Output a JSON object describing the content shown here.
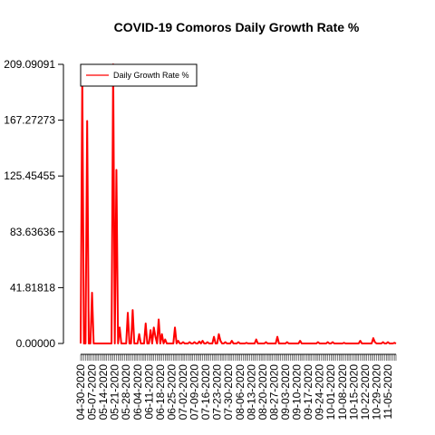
{
  "chart_data": {
    "type": "line",
    "title": "COVID-19 Comoros Daily Growth Rate %",
    "xlabel": "",
    "ylabel": "",
    "ylim": [
      0,
      209.09091
    ],
    "yticks": [
      "0.00000",
      "41.81818",
      "83.63636",
      "125.45455",
      "167.27273",
      "209.09091"
    ],
    "start_date": "2020-04-30",
    "end_date": "2020-11-10",
    "xtick_labels": [
      "04-30-2020",
      "05-07-2020",
      "05-14-2020",
      "05-21-2020",
      "05-28-2020",
      "06-04-2020",
      "06-11-2020",
      "06-18-2020",
      "06-25-2020",
      "07-02-2020",
      "07-09-2020",
      "07-16-2020",
      "07-23-2020",
      "07-30-2020",
      "08-06-2020",
      "08-13-2020",
      "08-20-2020",
      "08-27-2020",
      "09-03-2020",
      "09-10-2020",
      "09-17-2020",
      "09-24-2020",
      "10-01-2020",
      "10-08-2020",
      "10-15-2020",
      "10-22-2020",
      "10-29-2020",
      "11-05-2020"
    ],
    "legend": {
      "position": "top-left",
      "entries": [
        {
          "label": "Daily Growth Rate %",
          "color": "#ff0000"
        }
      ]
    },
    "grid": false,
    "series": [
      {
        "name": "Daily Growth Rate %",
        "color": "#ff0000",
        "points": [
          [
            "2020-04-30",
            0
          ],
          [
            "2020-05-01",
            200
          ],
          [
            "2020-05-02",
            0
          ],
          [
            "2020-05-03",
            0
          ],
          [
            "2020-05-04",
            166.7
          ],
          [
            "2020-05-05",
            0
          ],
          [
            "2020-05-06",
            0
          ],
          [
            "2020-05-07",
            38
          ],
          [
            "2020-05-08",
            0
          ],
          [
            "2020-05-09",
            0
          ],
          [
            "2020-05-10",
            0
          ],
          [
            "2020-05-11",
            0
          ],
          [
            "2020-05-12",
            0
          ],
          [
            "2020-05-13",
            0
          ],
          [
            "2020-05-14",
            0
          ],
          [
            "2020-05-15",
            0
          ],
          [
            "2020-05-16",
            0
          ],
          [
            "2020-05-17",
            0
          ],
          [
            "2020-05-18",
            0
          ],
          [
            "2020-05-19",
            0
          ],
          [
            "2020-05-20",
            209.09
          ],
          [
            "2020-05-21",
            0
          ],
          [
            "2020-05-22",
            130
          ],
          [
            "2020-05-23",
            0
          ],
          [
            "2020-05-24",
            12
          ],
          [
            "2020-05-25",
            0
          ],
          [
            "2020-05-26",
            0
          ],
          [
            "2020-05-27",
            0
          ],
          [
            "2020-05-28",
            0
          ],
          [
            "2020-05-29",
            23
          ],
          [
            "2020-05-30",
            0
          ],
          [
            "2020-05-31",
            0
          ],
          [
            "2020-06-01",
            25
          ],
          [
            "2020-06-02",
            0
          ],
          [
            "2020-06-03",
            0
          ],
          [
            "2020-06-04",
            0
          ],
          [
            "2020-06-05",
            7
          ],
          [
            "2020-06-06",
            0
          ],
          [
            "2020-06-07",
            0
          ],
          [
            "2020-06-08",
            0
          ],
          [
            "2020-06-09",
            15
          ],
          [
            "2020-06-10",
            0
          ],
          [
            "2020-06-11",
            0
          ],
          [
            "2020-06-12",
            10
          ],
          [
            "2020-06-13",
            0
          ],
          [
            "2020-06-14",
            12
          ],
          [
            "2020-06-15",
            5
          ],
          [
            "2020-06-16",
            0
          ],
          [
            "2020-06-17",
            18
          ],
          [
            "2020-06-18",
            0
          ],
          [
            "2020-06-19",
            7
          ],
          [
            "2020-06-20",
            0
          ],
          [
            "2020-06-21",
            3
          ],
          [
            "2020-06-22",
            0
          ],
          [
            "2020-06-23",
            0
          ],
          [
            "2020-06-24",
            0
          ],
          [
            "2020-06-25",
            0
          ],
          [
            "2020-06-26",
            0
          ],
          [
            "2020-06-27",
            12
          ],
          [
            "2020-06-28",
            0
          ],
          [
            "2020-06-29",
            2
          ],
          [
            "2020-06-30",
            0
          ],
          [
            "2020-07-01",
            0
          ],
          [
            "2020-07-02",
            1
          ],
          [
            "2020-07-03",
            0
          ],
          [
            "2020-07-04",
            0
          ],
          [
            "2020-07-05",
            0
          ],
          [
            "2020-07-06",
            1
          ],
          [
            "2020-07-07",
            0
          ],
          [
            "2020-07-08",
            0
          ],
          [
            "2020-07-09",
            1
          ],
          [
            "2020-07-10",
            0
          ],
          [
            "2020-07-11",
            0
          ],
          [
            "2020-07-12",
            1.5
          ],
          [
            "2020-07-13",
            0
          ],
          [
            "2020-07-14",
            2
          ],
          [
            "2020-07-15",
            0
          ],
          [
            "2020-07-16",
            0
          ],
          [
            "2020-07-17",
            1
          ],
          [
            "2020-07-18",
            0
          ],
          [
            "2020-07-19",
            0
          ],
          [
            "2020-07-20",
            0
          ],
          [
            "2020-07-21",
            5
          ],
          [
            "2020-07-22",
            0
          ],
          [
            "2020-07-23",
            0
          ],
          [
            "2020-07-24",
            7
          ],
          [
            "2020-07-25",
            2
          ],
          [
            "2020-07-26",
            0
          ],
          [
            "2020-07-27",
            0
          ],
          [
            "2020-07-28",
            1
          ],
          [
            "2020-07-29",
            0
          ],
          [
            "2020-07-30",
            0
          ],
          [
            "2020-07-31",
            0
          ],
          [
            "2020-08-01",
            2
          ],
          [
            "2020-08-02",
            0
          ],
          [
            "2020-08-03",
            0
          ],
          [
            "2020-08-04",
            0
          ],
          [
            "2020-08-05",
            1
          ],
          [
            "2020-08-06",
            0
          ],
          [
            "2020-08-07",
            0
          ],
          [
            "2020-08-08",
            0
          ],
          [
            "2020-08-09",
            0
          ],
          [
            "2020-08-10",
            0.5
          ],
          [
            "2020-08-11",
            0
          ],
          [
            "2020-08-12",
            0
          ],
          [
            "2020-08-13",
            0
          ],
          [
            "2020-08-14",
            0
          ],
          [
            "2020-08-15",
            0
          ],
          [
            "2020-08-16",
            3
          ],
          [
            "2020-08-17",
            0
          ],
          [
            "2020-08-18",
            0
          ],
          [
            "2020-08-19",
            0
          ],
          [
            "2020-08-20",
            0
          ],
          [
            "2020-08-21",
            0
          ],
          [
            "2020-08-22",
            1
          ],
          [
            "2020-08-23",
            0
          ],
          [
            "2020-08-24",
            0
          ],
          [
            "2020-08-25",
            0
          ],
          [
            "2020-08-26",
            0
          ],
          [
            "2020-08-27",
            0
          ],
          [
            "2020-08-28",
            0
          ],
          [
            "2020-08-29",
            5
          ],
          [
            "2020-08-30",
            0
          ],
          [
            "2020-08-31",
            0
          ],
          [
            "2020-09-01",
            0
          ],
          [
            "2020-09-02",
            0
          ],
          [
            "2020-09-03",
            0
          ],
          [
            "2020-09-04",
            1
          ],
          [
            "2020-09-05",
            0
          ],
          [
            "2020-09-06",
            0
          ],
          [
            "2020-09-07",
            0
          ],
          [
            "2020-09-08",
            0
          ],
          [
            "2020-09-09",
            0
          ],
          [
            "2020-09-10",
            0
          ],
          [
            "2020-09-11",
            0
          ],
          [
            "2020-09-12",
            2
          ],
          [
            "2020-09-13",
            0
          ],
          [
            "2020-09-14",
            0
          ],
          [
            "2020-09-15",
            0
          ],
          [
            "2020-09-16",
            0
          ],
          [
            "2020-09-17",
            0
          ],
          [
            "2020-09-18",
            0
          ],
          [
            "2020-09-19",
            0
          ],
          [
            "2020-09-20",
            0
          ],
          [
            "2020-09-21",
            0
          ],
          [
            "2020-09-22",
            0
          ],
          [
            "2020-09-23",
            1
          ],
          [
            "2020-09-24",
            0
          ],
          [
            "2020-09-25",
            0
          ],
          [
            "2020-09-26",
            0
          ],
          [
            "2020-09-27",
            0
          ],
          [
            "2020-09-28",
            0
          ],
          [
            "2020-09-29",
            1
          ],
          [
            "2020-09-30",
            0
          ],
          [
            "2020-10-01",
            0
          ],
          [
            "2020-10-02",
            1
          ],
          [
            "2020-10-03",
            0
          ],
          [
            "2020-10-04",
            0
          ],
          [
            "2020-10-05",
            0
          ],
          [
            "2020-10-06",
            0
          ],
          [
            "2020-10-07",
            0
          ],
          [
            "2020-10-08",
            0
          ],
          [
            "2020-10-09",
            0.5
          ],
          [
            "2020-10-10",
            0
          ],
          [
            "2020-10-11",
            0
          ],
          [
            "2020-10-12",
            0
          ],
          [
            "2020-10-13",
            0
          ],
          [
            "2020-10-14",
            0
          ],
          [
            "2020-10-15",
            0
          ],
          [
            "2020-10-16",
            0
          ],
          [
            "2020-10-17",
            0
          ],
          [
            "2020-10-18",
            0
          ],
          [
            "2020-10-19",
            2
          ],
          [
            "2020-10-20",
            0
          ],
          [
            "2020-10-21",
            0
          ],
          [
            "2020-10-22",
            0
          ],
          [
            "2020-10-23",
            0
          ],
          [
            "2020-10-24",
            0
          ],
          [
            "2020-10-25",
            0
          ],
          [
            "2020-10-26",
            0
          ],
          [
            "2020-10-27",
            4
          ],
          [
            "2020-10-28",
            1
          ],
          [
            "2020-10-29",
            0
          ],
          [
            "2020-10-30",
            0
          ],
          [
            "2020-10-31",
            0
          ],
          [
            "2020-11-01",
            0
          ],
          [
            "2020-11-02",
            1
          ],
          [
            "2020-11-03",
            0
          ],
          [
            "2020-11-04",
            0
          ],
          [
            "2020-11-05",
            1
          ],
          [
            "2020-11-06",
            0
          ],
          [
            "2020-11-07",
            0
          ],
          [
            "2020-11-08",
            0
          ],
          [
            "2020-11-09",
            0.5
          ],
          [
            "2020-11-10",
            0
          ]
        ]
      }
    ]
  }
}
